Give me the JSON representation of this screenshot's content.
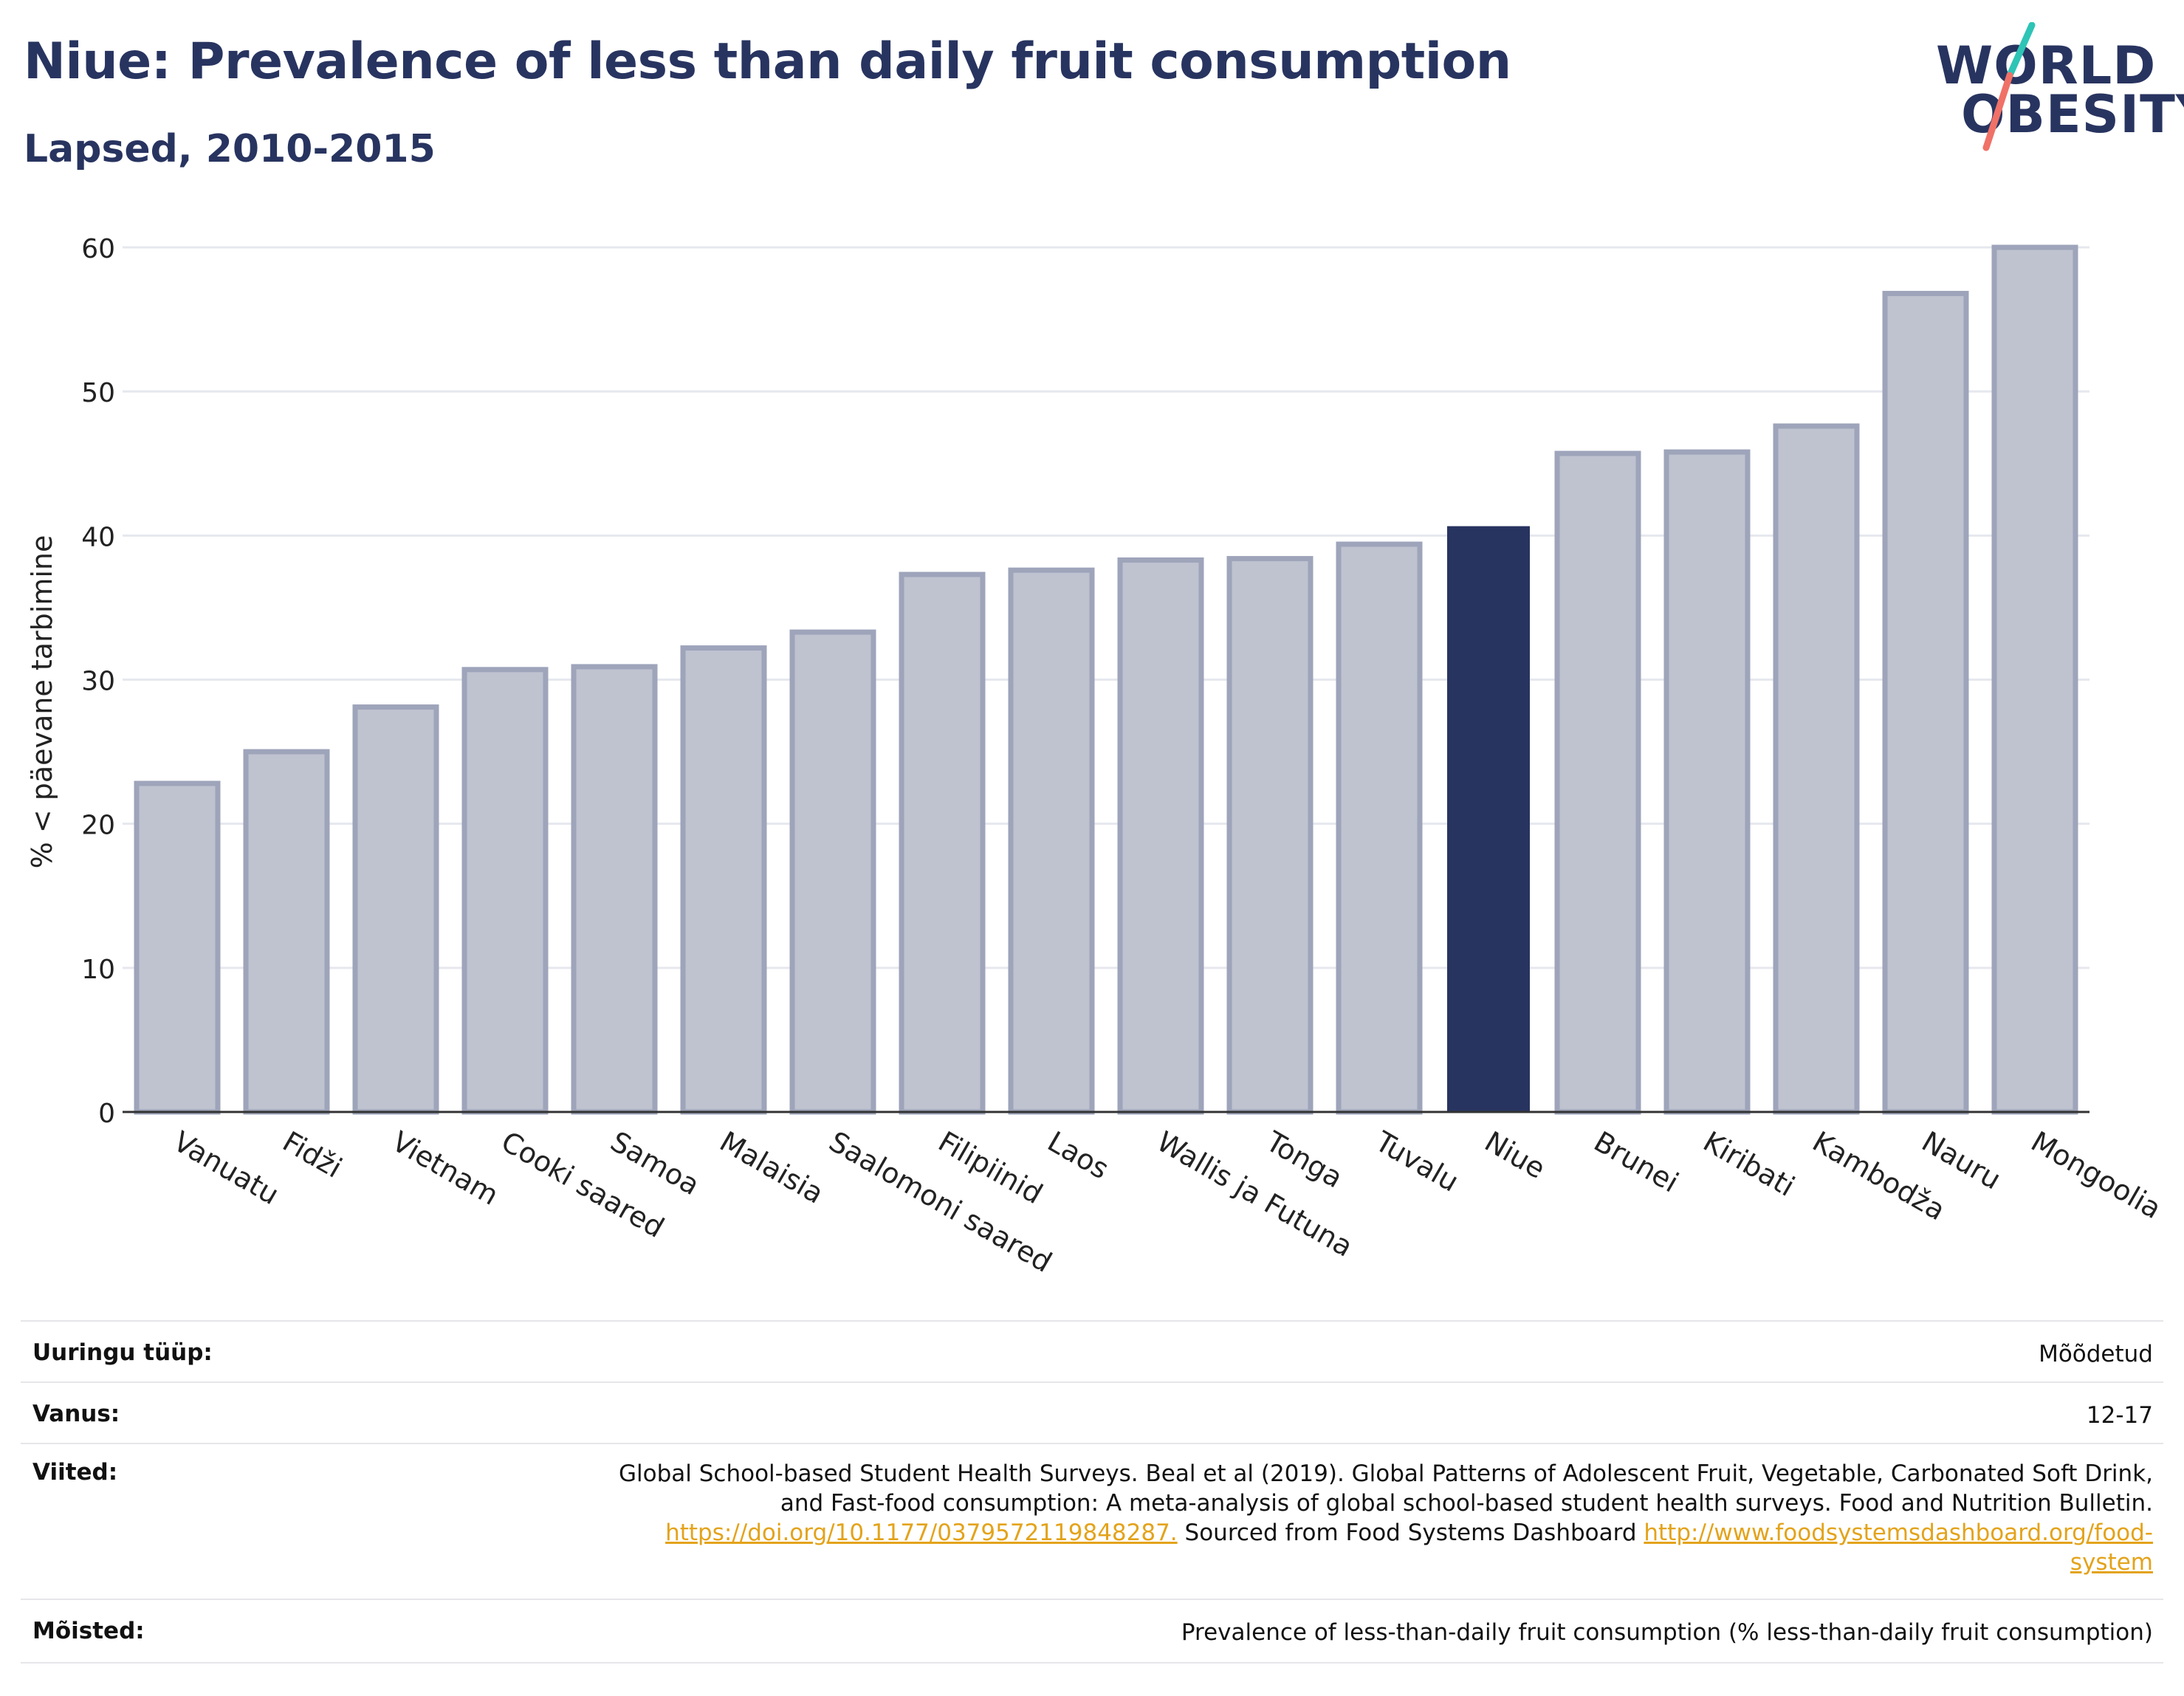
{
  "header": {
    "title": "Niue: Prevalence of less than daily fruit consumption",
    "subtitle": "Lapsed, 2010-2015"
  },
  "logo": {
    "line1": "WORLD",
    "line2": "OBESITY",
    "accent_colors": [
      "#2ec4b6",
      "#f07167"
    ]
  },
  "colors": {
    "bar": "#283460",
    "bar_faded_fill": "#bfc2cf",
    "bar_faded_stroke": "#9ea4ba",
    "grid": "#e6e8ee",
    "axis": "#333333"
  },
  "chart_data": {
    "type": "bar",
    "title": "Niue: Prevalence of less than daily fruit consumption",
    "subtitle": "Lapsed, 2010-2015",
    "xlabel": "",
    "ylabel": "% < päevane tarbimine",
    "ylim": [
      0,
      60
    ],
    "yticks": [
      0,
      10,
      20,
      30,
      40,
      50,
      60
    ],
    "grid": true,
    "highlight": "Niue",
    "categories": [
      "Vanuatu",
      "Fidži",
      "Vietnam",
      "Cooki saared",
      "Samoa",
      "Malaisia",
      "Saalomoni saared",
      "Filipiinid",
      "Laos",
      "Wallis ja Futuna",
      "Tonga",
      "Tuvalu",
      "Niue",
      "Brunei",
      "Kiribati",
      "Kambodža",
      "Nauru",
      "Mongoolia"
    ],
    "values": [
      22.8,
      25.0,
      28.1,
      30.7,
      30.9,
      32.2,
      33.3,
      37.3,
      37.6,
      38.3,
      38.4,
      39.4,
      40.6,
      45.7,
      45.8,
      47.6,
      56.8,
      60.0
    ]
  },
  "meta": {
    "survey_type_label": "Uuringu tüüp:",
    "survey_type_value": "Mõõdetud",
    "age_label": "Vanus:",
    "age_value": "12-17",
    "refs_label": "Viited:",
    "refs_text1": "Global School-based Student Health Surveys. Beal et al (2019). Global Patterns of Adolescent Fruit, Vegetable, Carbonated Soft Drink,",
    "refs_text2": "and Fast-food consumption: A meta-analysis of global school-based student health surveys. Food and Nutrition Bulletin.",
    "refs_link1": "https://doi.org/10.1177/0379572119848287.",
    "refs_text3": " Sourced from Food Systems Dashboard ",
    "refs_link2a": "http://www.foodsystemsdashboard.org/food-",
    "refs_link2b": "system",
    "definitions_label": "Mõisted:",
    "definitions_value": "Prevalence of less-than-daily fruit consumption (% less-than-daily fruit consumption)"
  }
}
